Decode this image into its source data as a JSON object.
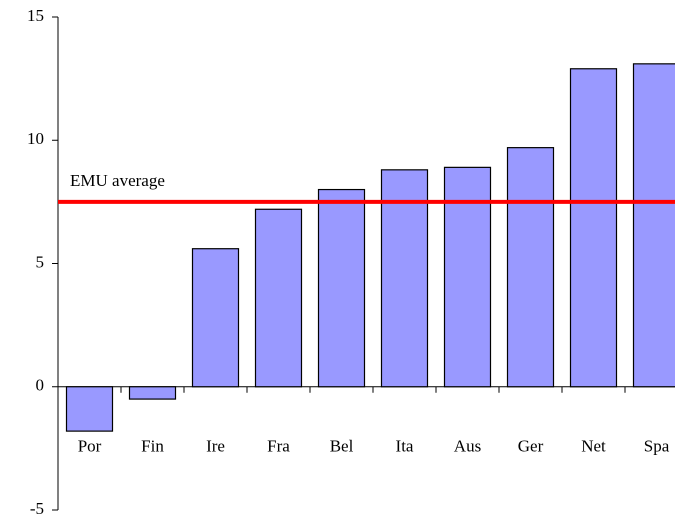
{
  "chart_data": {
    "type": "bar",
    "categories": [
      "Por",
      "Fin",
      "Ire",
      "Fra",
      "Bel",
      "Ita",
      "Aus",
      "Ger",
      "Net",
      "Spa"
    ],
    "values": [
      -1.8,
      -0.5,
      5.6,
      7.2,
      8.0,
      8.8,
      8.9,
      9.7,
      12.9,
      13.1
    ],
    "color": "#9999ff",
    "ylim": [
      -5,
      15
    ],
    "yticks": [
      -5,
      0,
      5,
      10,
      15
    ],
    "reference_line": {
      "value": 7.5,
      "label": "EMU average",
      "color": "#ff0000"
    }
  }
}
